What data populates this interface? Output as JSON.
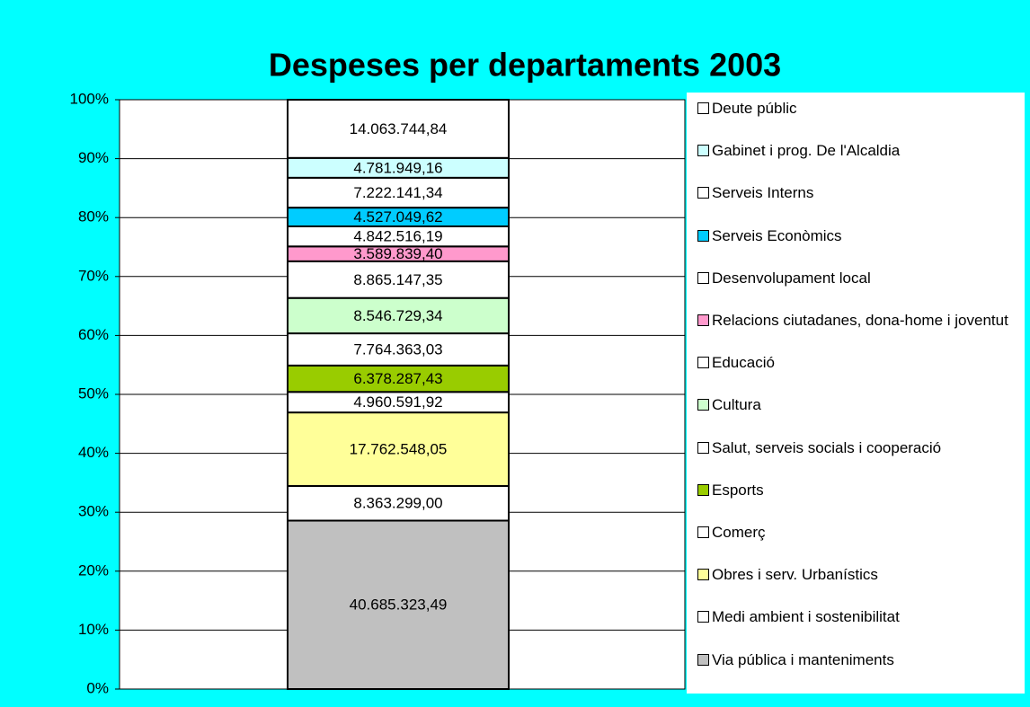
{
  "chart_data": {
    "type": "bar",
    "stacking": "percent",
    "title": "Despeses per departaments 2003",
    "categories": [
      null
    ],
    "ylim": [
      0,
      100
    ],
    "yticks": [
      {
        "value": 0,
        "label": "0%"
      },
      {
        "value": 10,
        "label": "10%"
      },
      {
        "value": 20,
        "label": "20%"
      },
      {
        "value": 30,
        "label": "30%"
      },
      {
        "value": 40,
        "label": "40%"
      },
      {
        "value": 50,
        "label": "50%"
      },
      {
        "value": 60,
        "label": "60%"
      },
      {
        "value": 70,
        "label": "70%"
      },
      {
        "value": 80,
        "label": "80%"
      },
      {
        "value": 90,
        "label": "90%"
      },
      {
        "value": 100,
        "label": "100%"
      }
    ],
    "grid": true,
    "legend": "right",
    "series": [
      {
        "name": "Via pública i manteniments",
        "color": "#c0c0c0",
        "values": [
          40685323.49
        ],
        "value_labels": [
          "40.685.323,49"
        ]
      },
      {
        "name": "Medi ambient i sostenibilitat",
        "color": "#ffffff",
        "values": [
          8363299.0
        ],
        "value_labels": [
          "8.363.299,00"
        ]
      },
      {
        "name": "Obres i serv. Urbanístics",
        "color": "#ffff99",
        "values": [
          17762548.05
        ],
        "value_labels": [
          "17.762.548,05"
        ]
      },
      {
        "name": "Comerç",
        "color": "#ffffff",
        "values": [
          4960591.92
        ],
        "value_labels": [
          "4.960.591,92"
        ]
      },
      {
        "name": "Esports",
        "color": "#99cc00",
        "values": [
          6378287.43
        ],
        "value_labels": [
          "6.378.287,43"
        ]
      },
      {
        "name": "Salut, serveis socials i cooperació",
        "color": "#ffffff",
        "values": [
          7764363.03
        ],
        "value_labels": [
          "7.764.363,03"
        ]
      },
      {
        "name": "Cultura",
        "color": "#ccffcc",
        "values": [
          8546729.34
        ],
        "value_labels": [
          "8.546.729,34"
        ]
      },
      {
        "name": "Educació",
        "color": "#ffffff",
        "values": [
          8865147.35
        ],
        "value_labels": [
          "8.865.147,35"
        ]
      },
      {
        "name": "Relacions ciutadanes, dona-home i joventut",
        "color": "#ff99cc",
        "values": [
          3589839.4
        ],
        "value_labels": [
          "3.589.839,40"
        ]
      },
      {
        "name": "Desenvolupament local",
        "color": "#ffffff",
        "values": [
          4842516.19
        ],
        "value_labels": [
          "4.842.516,19"
        ]
      },
      {
        "name": "Serveis Econòmics",
        "color": "#00ccff",
        "values": [
          4527049.62
        ],
        "value_labels": [
          "4.527.049,62"
        ]
      },
      {
        "name": "Serveis Interns",
        "color": "#ffffff",
        "values": [
          7222141.34
        ],
        "value_labels": [
          "7.222.141,34"
        ]
      },
      {
        "name": "Gabinet i prog. De l'Alcaldia",
        "color": "#ccffff",
        "values": [
          4781949.16
        ],
        "value_labels": [
          "4.781.949,16"
        ]
      },
      {
        "name": "Deute públic",
        "color": "#ffffff",
        "values": [
          14063744.84
        ],
        "value_labels": [
          "14.063.744,84"
        ]
      }
    ]
  }
}
